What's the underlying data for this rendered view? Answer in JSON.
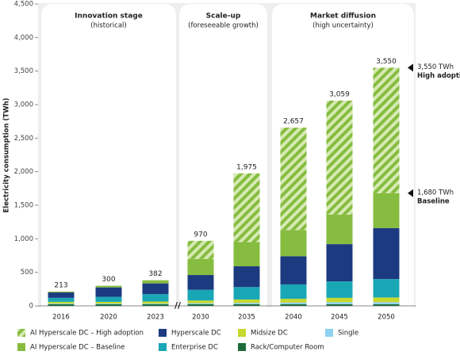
{
  "chart_data": {
    "type": "stacked_bar",
    "y_label": "Electricity consumption (TWh)",
    "categories": [
      "2016",
      "2020",
      "2023",
      "2030",
      "2035",
      "2040",
      "2045",
      "2050"
    ],
    "series": [
      {
        "name": "Rack/Computer Room",
        "color": "#1e6b3a",
        "values": [
          25,
          25,
          25,
          25,
          25,
          25,
          25,
          25
        ]
      },
      {
        "name": "Single",
        "color": "#8fd1ef",
        "values": [
          10,
          10,
          10,
          15,
          20,
          25,
          30,
          30
        ]
      },
      {
        "name": "Midsize DC",
        "color": "#c6d92e",
        "values": [
          25,
          25,
          30,
          40,
          50,
          55,
          65,
          70
        ]
      },
      {
        "name": "Enterprise DC",
        "color": "#1aa7b5",
        "values": [
          60,
          75,
          110,
          160,
          185,
          215,
          245,
          275
        ]
      },
      {
        "name": "Hyperscale DC",
        "color": "#1c3a80",
        "values": [
          80,
          140,
          160,
          220,
          310,
          420,
          555,
          760
        ]
      },
      {
        "name": "AI Hyperscale DC – Baseline",
        "color": "#86bc3f",
        "values": [
          13,
          25,
          47,
          240,
          360,
          390,
          440,
          520
        ]
      },
      {
        "name": "AI Hyperscale DC – High adoption",
        "color": "#86bc3f",
        "hatch": true,
        "values": [
          0,
          0,
          0,
          270,
          1025,
          1527,
          1699,
          1870
        ]
      }
    ],
    "totals": [
      213,
      300,
      382,
      970,
      1975,
      2657,
      3059,
      3550
    ],
    "total_labels": [
      "213",
      "300",
      "382",
      "970",
      "1,975",
      "2,657",
      "3,059",
      "3,550"
    ],
    "phases": [
      {
        "title": "Innovation stage",
        "subtitle": "(historical)"
      },
      {
        "title": "Scale-up",
        "subtitle": "(foreseeable growth)"
      },
      {
        "title": "Market diffusion",
        "subtitle": "(high uncertainty)"
      }
    ],
    "annotations": [
      {
        "value": 3550,
        "label": "3,550 TWh",
        "text": "High adoption"
      },
      {
        "value": 1680,
        "label": "1,680 TWh",
        "text": "Baseline"
      }
    ],
    "ylim": [
      0,
      4500
    ],
    "yticks": [
      0,
      500,
      {
        "value": 1000,
        "label": "1,000"
      },
      {
        "value": 1500,
        "label": "1,500"
      },
      {
        "value": 2000,
        "label": "2,000"
      },
      {
        "value": 2500,
        "label": "2,500"
      },
      {
        "value": 3000,
        "label": "3,000"
      },
      {
        "value": 3500,
        "label": "3,500"
      },
      {
        "value": 4000,
        "label": "4,000"
      },
      {
        "value": 4500,
        "label": "4,500"
      }
    ],
    "grid": false
  }
}
